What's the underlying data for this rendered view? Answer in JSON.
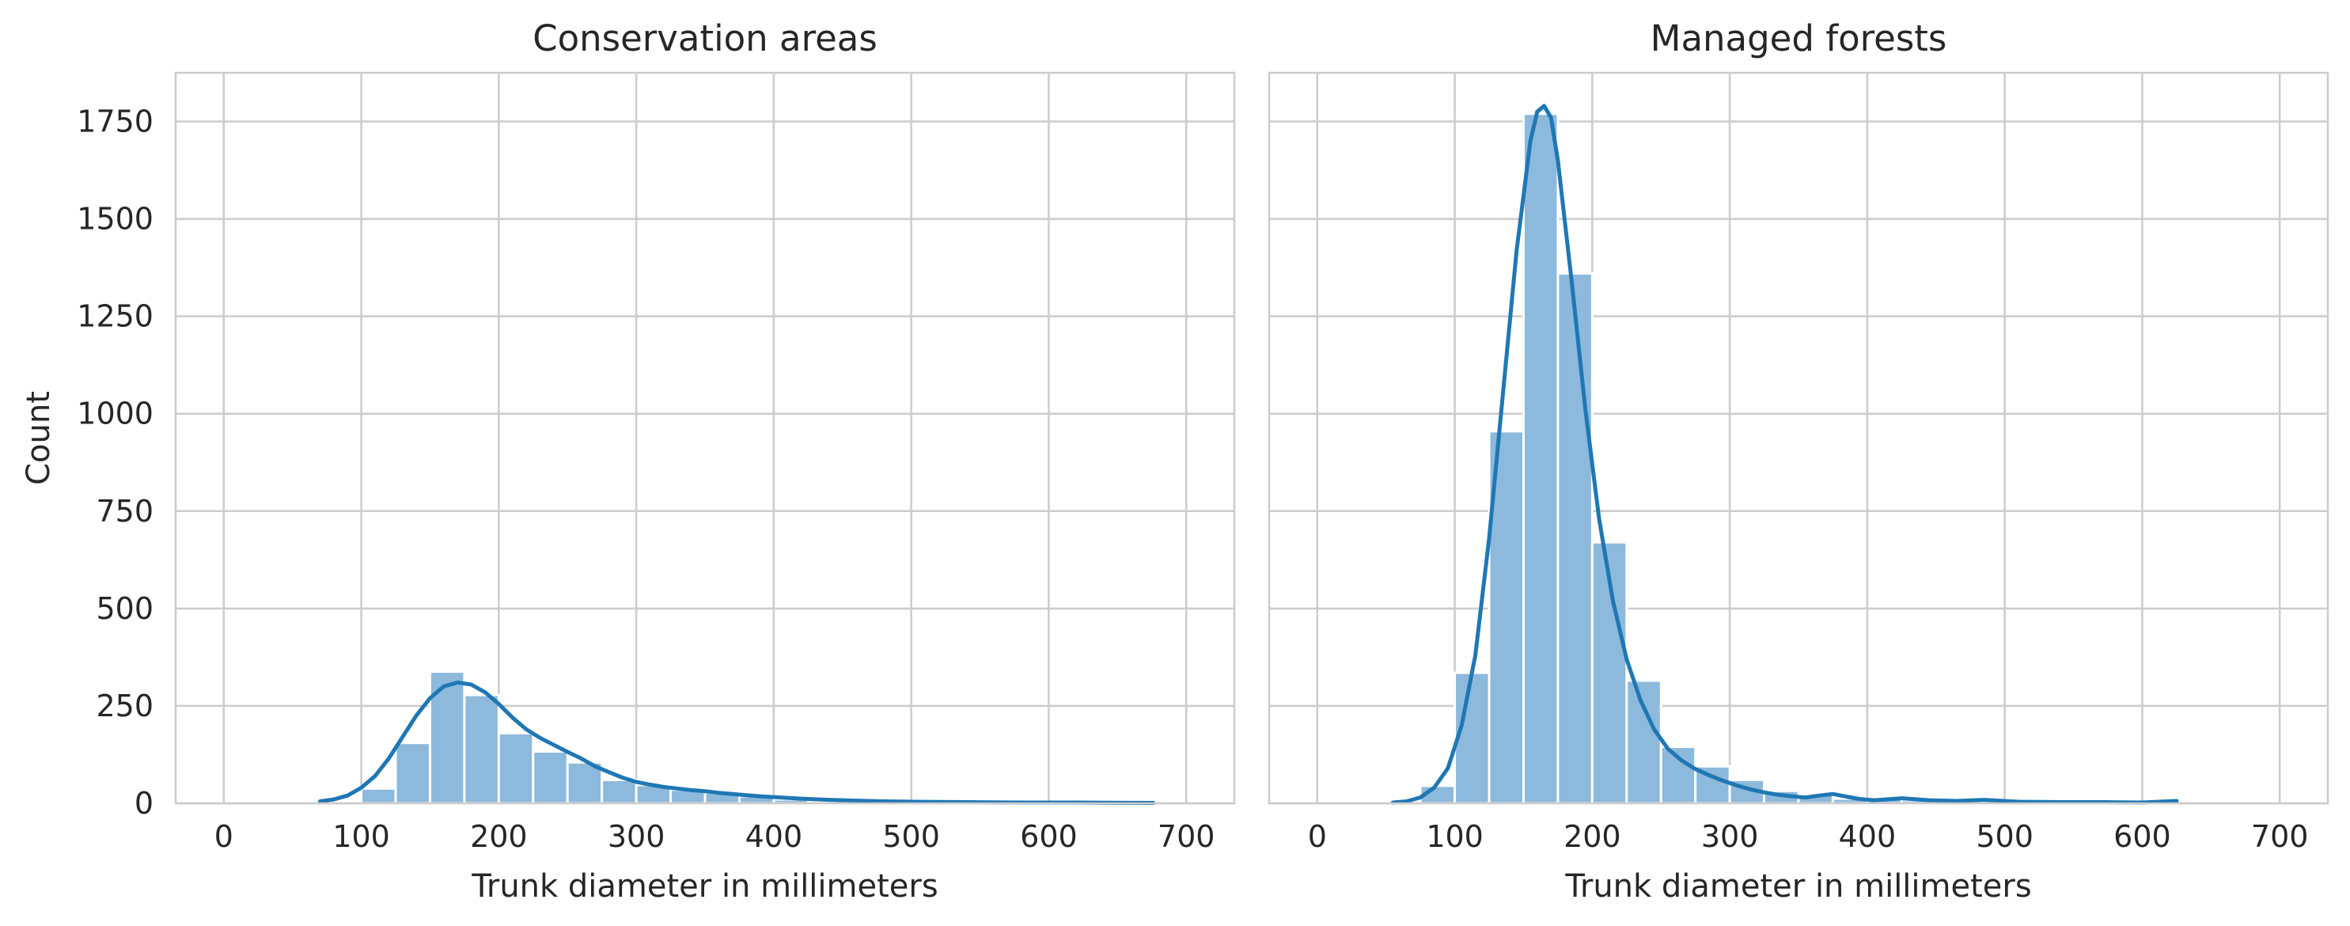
{
  "chart_data": [
    {
      "type": "bar",
      "title": "Conservation areas",
      "xlabel": "Trunk diameter in millimeters",
      "ylabel": "Count",
      "xlim": [
        -35,
        735
      ],
      "ylim": [
        0,
        1875
      ],
      "xticks": [
        "0",
        "100",
        "200",
        "300",
        "400",
        "500",
        "600",
        "700"
      ],
      "yticks": [
        "0",
        "250",
        "500",
        "750",
        "1000",
        "1250",
        "1500",
        "1750"
      ],
      "grid": true,
      "bar_color": "#8cb9dc",
      "line_color": "#1f77b4",
      "bins": [
        {
          "x0": 100,
          "x1": 125,
          "count": 38
        },
        {
          "x0": 125,
          "x1": 150,
          "count": 155
        },
        {
          "x0": 150,
          "x1": 175,
          "count": 338
        },
        {
          "x0": 175,
          "x1": 200,
          "count": 278
        },
        {
          "x0": 200,
          "x1": 225,
          "count": 180
        },
        {
          "x0": 225,
          "x1": 250,
          "count": 133
        },
        {
          "x0": 250,
          "x1": 275,
          "count": 105
        },
        {
          "x0": 275,
          "x1": 300,
          "count": 60
        },
        {
          "x0": 300,
          "x1": 325,
          "count": 47
        },
        {
          "x0": 325,
          "x1": 350,
          "count": 35
        },
        {
          "x0": 350,
          "x1": 375,
          "count": 28
        },
        {
          "x0": 375,
          "x1": 400,
          "count": 18
        },
        {
          "x0": 400,
          "x1": 425,
          "count": 10
        },
        {
          "x0": 425,
          "x1": 450,
          "count": 6
        },
        {
          "x0": 450,
          "x1": 475,
          "count": 4
        },
        {
          "x0": 475,
          "x1": 500,
          "count": 3
        },
        {
          "x0": 500,
          "x1": 525,
          "count": 2
        },
        {
          "x0": 525,
          "x1": 550,
          "count": 2
        },
        {
          "x0": 550,
          "x1": 575,
          "count": 1
        },
        {
          "x0": 575,
          "x1": 600,
          "count": 1
        },
        {
          "x0": 600,
          "x1": 625,
          "count": 1
        },
        {
          "x0": 625,
          "x1": 650,
          "count": 1
        },
        {
          "x0": 650,
          "x1": 675,
          "count": 1
        }
      ],
      "kde": {
        "x": [
          70,
          80,
          90,
          100,
          110,
          120,
          130,
          140,
          150,
          160,
          170,
          180,
          190,
          200,
          210,
          220,
          230,
          240,
          250,
          260,
          270,
          280,
          290,
          300,
          310,
          320,
          330,
          340,
          350,
          360,
          370,
          380,
          390,
          400,
          420,
          440,
          460,
          480,
          500,
          540,
          580,
          620,
          676
        ],
        "y": [
          5,
          10,
          20,
          40,
          70,
          115,
          170,
          225,
          270,
          300,
          310,
          305,
          285,
          255,
          220,
          190,
          168,
          150,
          132,
          115,
          95,
          80,
          66,
          55,
          48,
          42,
          38,
          34,
          31,
          27,
          24,
          21,
          18,
          16,
          12,
          9,
          7,
          5,
          4,
          3,
          2,
          2,
          1
        ]
      }
    },
    {
      "type": "bar",
      "title": "Managed forests",
      "xlabel": "Trunk diameter in millimeters",
      "ylabel": "",
      "xlim": [
        -35,
        735
      ],
      "ylim": [
        0,
        1875
      ],
      "xticks": [
        "0",
        "100",
        "200",
        "300",
        "400",
        "500",
        "600",
        "700"
      ],
      "yticks": [
        "0",
        "250",
        "500",
        "750",
        "1000",
        "1250",
        "1500",
        "1750"
      ],
      "grid": true,
      "bar_color": "#8cb9dc",
      "line_color": "#1f77b4",
      "bins": [
        {
          "x0": 75,
          "x1": 100,
          "count": 45
        },
        {
          "x0": 100,
          "x1": 125,
          "count": 335
        },
        {
          "x0": 125,
          "x1": 150,
          "count": 955
        },
        {
          "x0": 150,
          "x1": 175,
          "count": 1770
        },
        {
          "x0": 175,
          "x1": 200,
          "count": 1360
        },
        {
          "x0": 200,
          "x1": 225,
          "count": 670
        },
        {
          "x0": 225,
          "x1": 250,
          "count": 315
        },
        {
          "x0": 250,
          "x1": 275,
          "count": 145
        },
        {
          "x0": 275,
          "x1": 300,
          "count": 95
        },
        {
          "x0": 300,
          "x1": 325,
          "count": 60
        },
        {
          "x0": 325,
          "x1": 350,
          "count": 32
        },
        {
          "x0": 350,
          "x1": 375,
          "count": 22
        },
        {
          "x0": 375,
          "x1": 400,
          "count": 12
        },
        {
          "x0": 400,
          "x1": 425,
          "count": 10
        },
        {
          "x0": 425,
          "x1": 450,
          "count": 8
        },
        {
          "x0": 450,
          "x1": 475,
          "count": 6
        },
        {
          "x0": 475,
          "x1": 500,
          "count": 4
        },
        {
          "x0": 500,
          "x1": 525,
          "count": 3
        },
        {
          "x0": 525,
          "x1": 550,
          "count": 2
        },
        {
          "x0": 550,
          "x1": 575,
          "count": 2
        },
        {
          "x0": 575,
          "x1": 600,
          "count": 2
        },
        {
          "x0": 600,
          "x1": 625,
          "count": 2
        }
      ],
      "kde": {
        "x": [
          55,
          65,
          75,
          85,
          95,
          105,
          115,
          125,
          135,
          145,
          155,
          160,
          165,
          170,
          175,
          185,
          195,
          205,
          215,
          225,
          235,
          245,
          255,
          265,
          275,
          285,
          295,
          305,
          315,
          325,
          335,
          345,
          355,
          365,
          375,
          385,
          395,
          405,
          425,
          445,
          465,
          485,
          510,
          540,
          570,
          600,
          625
        ],
        "y": [
          2,
          5,
          15,
          40,
          90,
          200,
          380,
          680,
          1050,
          1420,
          1700,
          1775,
          1790,
          1760,
          1650,
          1340,
          1010,
          730,
          520,
          370,
          265,
          190,
          140,
          110,
          88,
          72,
          58,
          46,
          36,
          28,
          22,
          18,
          15,
          20,
          24,
          17,
          11,
          8,
          13,
          8,
          6,
          9,
          4,
          3,
          3,
          2,
          6
        ]
      }
    }
  ]
}
